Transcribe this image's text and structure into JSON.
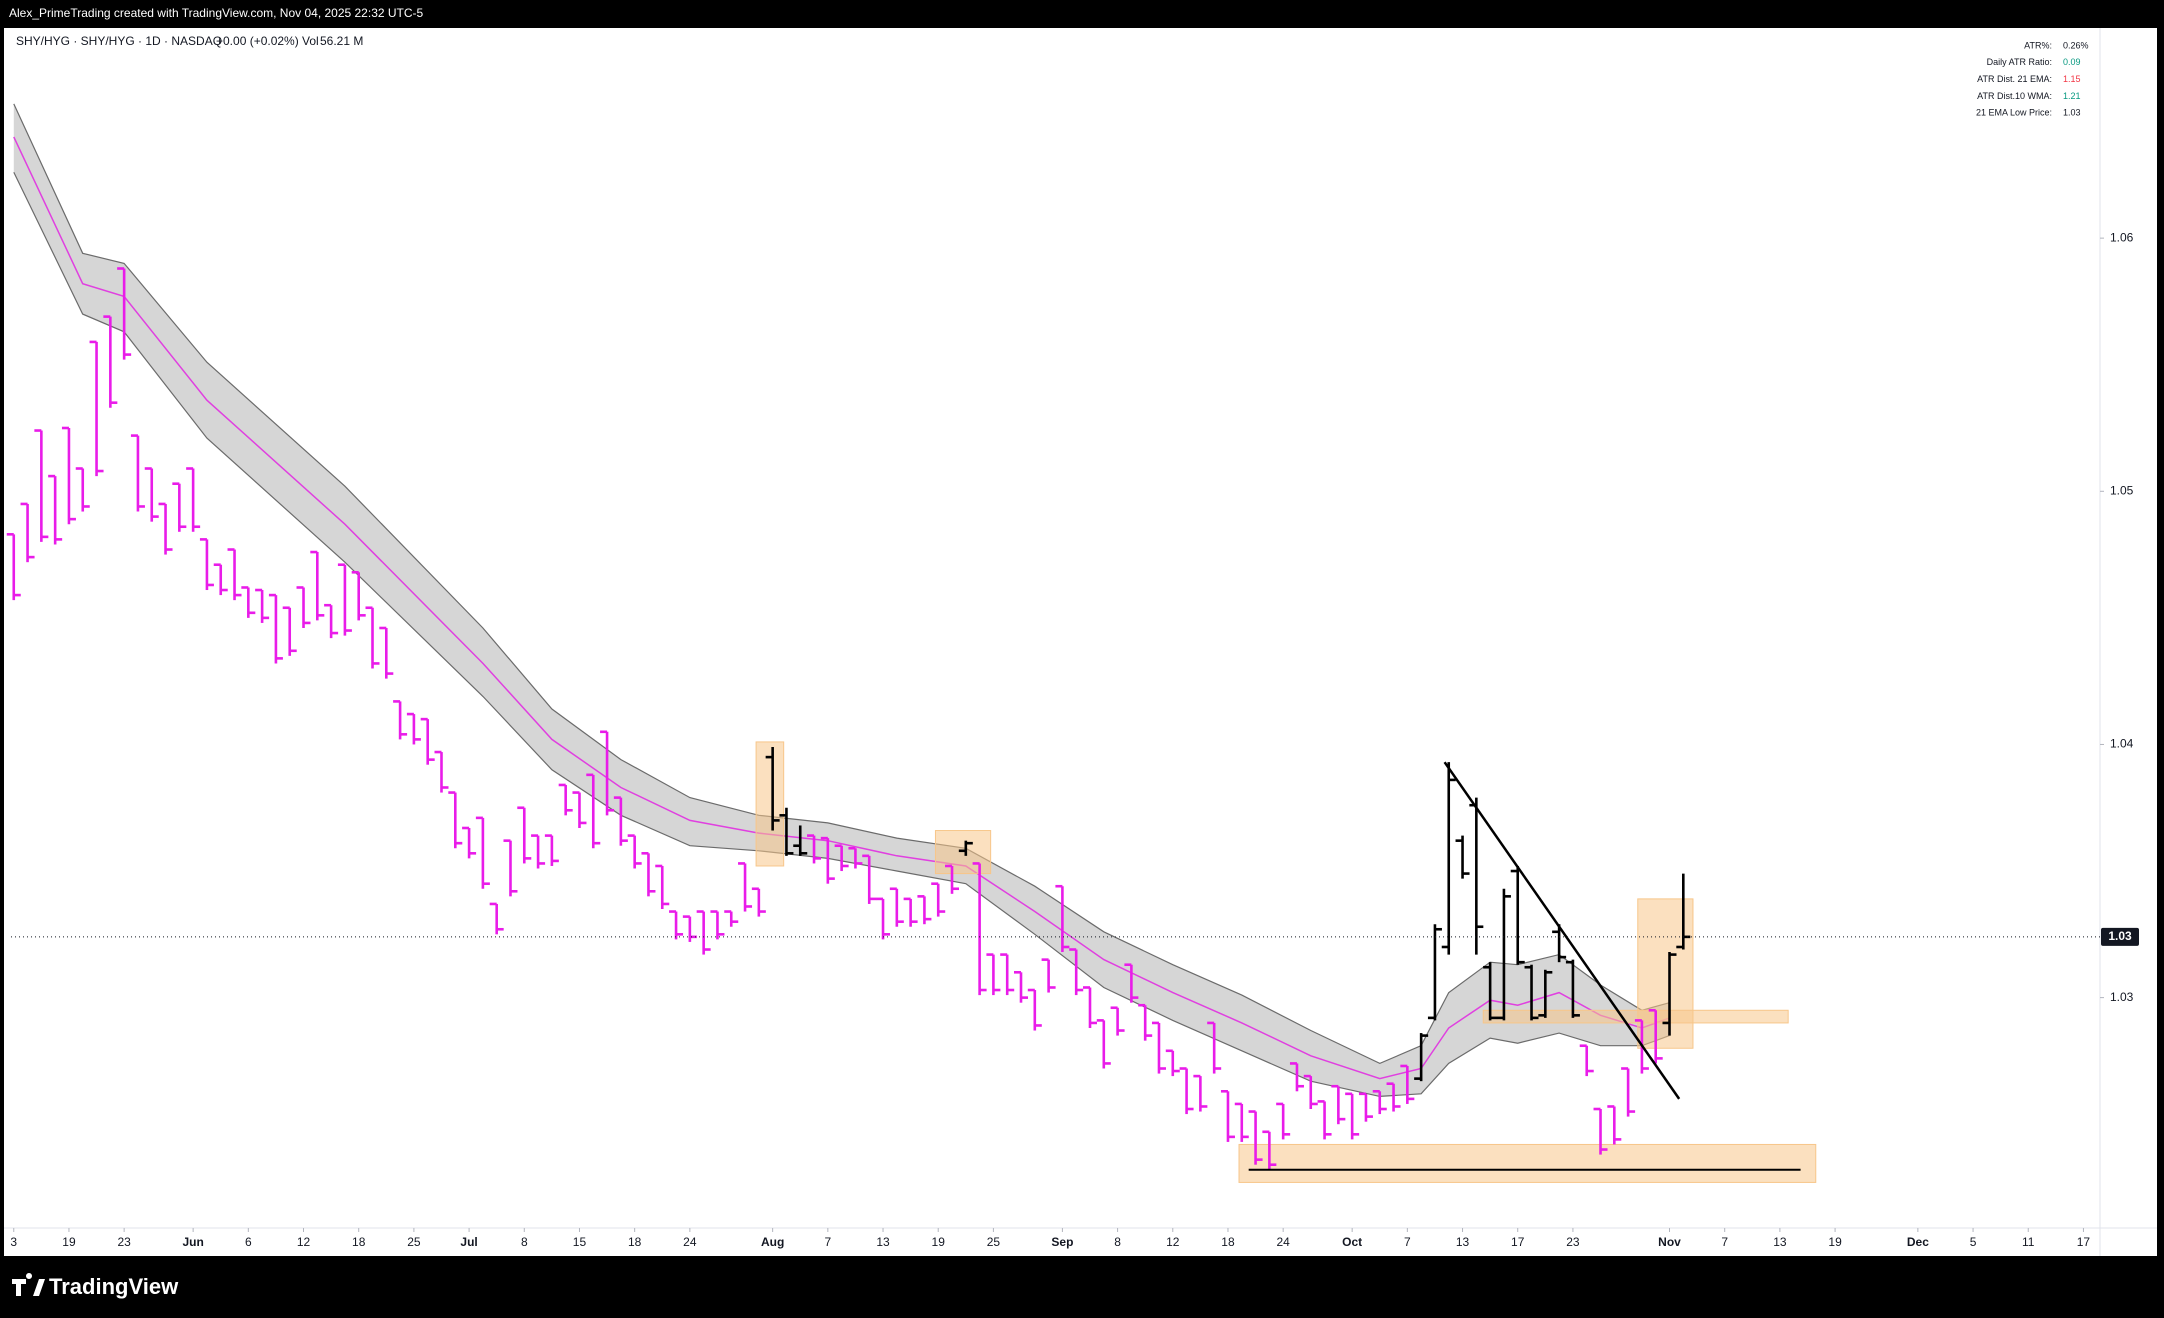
{
  "header": {
    "credit": "Alex_PrimeTrading created with TradingView.com, Nov 04, 2025 22:32 UTC-5"
  },
  "symbol": {
    "name": "SHY/HYG · SHY/HYG · 1D · NASDAQ",
    "change": "+0.00 (+0.02%)",
    "vol_label": "Vol",
    "vol": "56.21 M"
  },
  "stats": [
    {
      "label": "ATR%:",
      "value": "0.26%",
      "color": "#131722"
    },
    {
      "label": "Daily ATR Ratio:",
      "value": "0.09",
      "color": "#089981"
    },
    {
      "label": "ATR Dist. 21 EMA:",
      "value": "1.15",
      "color": "#f23645"
    },
    {
      "label": "ATR Dist.10 WMA:",
      "value": "1.21",
      "color": "#089981"
    },
    {
      "label": "21 EMA Low Price:",
      "value": "1.03",
      "color": "#131722"
    }
  ],
  "footer": {
    "logo": "TradingView"
  },
  "chart_data": {
    "type": "ohlc",
    "price_label": "1.03",
    "xlim": [
      -0.2,
      151.2
    ],
    "ylim": [
      1.0209,
      1.0683
    ],
    "yticks": [
      1.03,
      1.04,
      1.05,
      1.06
    ],
    "grid": false,
    "xticks": [
      {
        "value": 0,
        "label": "3"
      },
      {
        "value": 4,
        "label": "19"
      },
      {
        "value": 8,
        "label": "23"
      },
      {
        "value": 13,
        "label": "Jun"
      },
      {
        "value": 17,
        "label": "6"
      },
      {
        "value": 21,
        "label": "12"
      },
      {
        "value": 25,
        "label": "18"
      },
      {
        "value": 29,
        "label": "25"
      },
      {
        "value": 33,
        "label": "Jul"
      },
      {
        "value": 37,
        "label": "8"
      },
      {
        "value": 41,
        "label": "15"
      },
      {
        "value": 45,
        "label": "18"
      },
      {
        "value": 49,
        "label": "24"
      },
      {
        "value": 55,
        "label": "Aug"
      },
      {
        "value": 59,
        "label": "7"
      },
      {
        "value": 63,
        "label": "13"
      },
      {
        "value": 67,
        "label": "19"
      },
      {
        "value": 71,
        "label": "25"
      },
      {
        "value": 76,
        "label": "Sep"
      },
      {
        "value": 80,
        "label": "8"
      },
      {
        "value": 84,
        "label": "12"
      },
      {
        "value": 88,
        "label": "18"
      },
      {
        "value": 92,
        "label": "24"
      },
      {
        "value": 97,
        "label": "Oct"
      },
      {
        "value": 101,
        "label": "7"
      },
      {
        "value": 105,
        "label": "13"
      },
      {
        "value": 109,
        "label": "17"
      },
      {
        "value": 113,
        "label": "23"
      },
      {
        "value": 120,
        "label": "Nov"
      },
      {
        "value": 124,
        "label": "7"
      },
      {
        "value": 128,
        "label": "13"
      },
      {
        "value": 132,
        "label": "19"
      },
      {
        "value": 138,
        "label": "Dec"
      },
      {
        "value": 142,
        "label": "5"
      },
      {
        "value": 146,
        "label": "11"
      },
      {
        "value": 150,
        "label": "17"
      }
    ],
    "open": [
      1.0483,
      1.0495,
      1.0524,
      1.0506,
      1.0525,
      1.0509,
      1.0559,
      1.0569,
      1.0588,
      1.0522,
      1.0509,
      1.0495,
      1.0503,
      1.0509,
      1.0481,
      1.0471,
      1.0477,
      1.0462,
      1.0461,
      1.0459,
      1.0454,
      1.0462,
      1.0476,
      1.0455,
      1.0471,
      1.0468,
      1.0454,
      1.0446,
      1.0417,
      1.0412,
      1.041,
      1.0397,
      1.0381,
      1.0367,
      1.0371,
      1.0337,
      1.0362,
      1.0375,
      1.0364,
      1.0364,
      1.0384,
      1.0381,
      1.0388,
      1.0405,
      1.0379,
      1.0364,
      1.0357,
      1.0352,
      1.0334,
      1.0332,
      1.0334,
      1.0334,
      1.0334,
      1.0353,
      1.0343,
      1.0395,
      1.0372,
      1.036,
      1.0364,
      1.0363,
      1.036,
      1.0359,
      1.0356,
      1.0339,
      1.0343,
      1.0339,
      1.034,
      1.0345,
      1.0352,
      1.0358,
      1.0353,
      1.0317,
      1.0317,
      1.031,
      1.0303,
      1.0315,
      1.0344,
      1.0319,
      1.0304,
      1.0291,
      1.0296,
      1.0313,
      1.0297,
      1.029,
      1.0279,
      1.0272,
      1.0269,
      1.029,
      1.0263,
      1.0258,
      1.0255,
      1.0247,
      1.0258,
      1.0274,
      1.0269,
      1.0259,
      1.0265,
      1.0262,
      1.0262,
      1.0263,
      1.0266,
      1.0273,
      1.0268,
      1.0292,
      1.032,
      1.0362,
      1.0376,
      1.0312,
      1.0292,
      1.035,
      1.0312,
      1.0293,
      1.0326,
      1.0314,
      1.0281,
      1.0256,
      1.0257,
      1.0272,
      1.0291,
      1.0295,
      1.029,
      1.032
    ],
    "high": [
      1.0483,
      1.0495,
      1.0524,
      1.0506,
      1.0525,
      1.0509,
      1.0559,
      1.0569,
      1.0588,
      1.0522,
      1.0509,
      1.0495,
      1.0503,
      1.0509,
      1.0481,
      1.0471,
      1.0477,
      1.0462,
      1.0461,
      1.0459,
      1.0454,
      1.0462,
      1.0476,
      1.0455,
      1.0471,
      1.0468,
      1.0454,
      1.0446,
      1.0417,
      1.0412,
      1.041,
      1.0397,
      1.0381,
      1.0367,
      1.0371,
      1.0337,
      1.0362,
      1.0375,
      1.0364,
      1.0364,
      1.0384,
      1.0381,
      1.0388,
      1.0405,
      1.0379,
      1.0364,
      1.0357,
      1.0352,
      1.0334,
      1.0332,
      1.0334,
      1.0334,
      1.0334,
      1.0353,
      1.0343,
      1.0399,
      1.0375,
      1.0368,
      1.0364,
      1.0363,
      1.036,
      1.0359,
      1.0356,
      1.0339,
      1.0343,
      1.0339,
      1.034,
      1.0345,
      1.0352,
      1.0362,
      1.0353,
      1.0317,
      1.0317,
      1.031,
      1.0303,
      1.0315,
      1.0344,
      1.0319,
      1.0304,
      1.0291,
      1.0296,
      1.0313,
      1.0297,
      1.029,
      1.0279,
      1.0272,
      1.0269,
      1.029,
      1.0263,
      1.0258,
      1.0255,
      1.0247,
      1.0258,
      1.0274,
      1.0269,
      1.0259,
      1.0265,
      1.0262,
      1.0262,
      1.0263,
      1.0266,
      1.0273,
      1.0286,
      1.0329,
      1.0393,
      1.0364,
      1.0379,
      1.0314,
      1.0343,
      1.0352,
      1.0313,
      1.0311,
      1.0329,
      1.0315,
      1.0281,
      1.0256,
      1.0257,
      1.0272,
      1.0291,
      1.0295,
      1.0318,
      1.0349
    ],
    "low": [
      1.0457,
      1.0472,
      1.048,
      1.0479,
      1.0487,
      1.0492,
      1.0506,
      1.0533,
      1.0552,
      1.0492,
      1.0488,
      1.0475,
      1.0484,
      1.0484,
      1.0461,
      1.0459,
      1.0457,
      1.045,
      1.0448,
      1.0432,
      1.0435,
      1.0446,
      1.0449,
      1.0442,
      1.0443,
      1.0449,
      1.043,
      1.0426,
      1.0402,
      1.04,
      1.0392,
      1.0381,
      1.0359,
      1.0355,
      1.0343,
      1.0325,
      1.034,
      1.0353,
      1.0351,
      1.0352,
      1.0372,
      1.0367,
      1.0359,
      1.0372,
      1.036,
      1.0351,
      1.034,
      1.0335,
      1.0323,
      1.0322,
      1.0317,
      1.0323,
      1.0328,
      1.0334,
      1.0332,
      1.0366,
      1.0356,
      1.0356,
      1.0353,
      1.0345,
      1.035,
      1.0351,
      1.0337,
      1.0323,
      1.0328,
      1.0328,
      1.0329,
      1.0332,
      1.0341,
      1.0356,
      1.0301,
      1.0301,
      1.0301,
      1.0298,
      1.0287,
      1.0302,
      1.0318,
      1.0301,
      1.0288,
      1.0272,
      1.0285,
      1.0298,
      1.0283,
      1.027,
      1.0269,
      1.0254,
      1.0255,
      1.027,
      1.0243,
      1.0243,
      1.0234,
      1.0232,
      1.0244,
      1.0263,
      1.0256,
      1.0244,
      1.025,
      1.0244,
      1.0251,
      1.0254,
      1.0255,
      1.0258,
      1.0267,
      1.0291,
      1.0317,
      1.0347,
      1.0317,
      1.0291,
      1.0291,
      1.0313,
      1.0291,
      1.0292,
      1.0314,
      1.0292,
      1.0269,
      1.0238,
      1.0242,
      1.0253,
      1.027,
      1.0274,
      1.0285,
      1.0319
    ],
    "close": [
      1.0459,
      1.0474,
      1.0482,
      1.0481,
      1.0489,
      1.0494,
      1.0508,
      1.0535,
      1.0554,
      1.0494,
      1.049,
      1.0477,
      1.0486,
      1.0486,
      1.0463,
      1.0461,
      1.0459,
      1.0452,
      1.045,
      1.0434,
      1.0437,
      1.0448,
      1.0451,
      1.0444,
      1.0445,
      1.0451,
      1.0432,
      1.0428,
      1.0404,
      1.0402,
      1.0394,
      1.0383,
      1.0361,
      1.0357,
      1.0345,
      1.0327,
      1.0342,
      1.0355,
      1.0353,
      1.0354,
      1.0374,
      1.0369,
      1.0361,
      1.0374,
      1.0362,
      1.0353,
      1.0342,
      1.0337,
      1.0325,
      1.0324,
      1.0319,
      1.0325,
      1.033,
      1.0336,
      1.0334,
      1.037,
      1.0357,
      1.0357,
      1.0355,
      1.0347,
      1.0352,
      1.0353,
      1.0339,
      1.0325,
      1.033,
      1.033,
      1.0331,
      1.0334,
      1.0343,
      1.0361,
      1.0303,
      1.0303,
      1.0303,
      1.03,
      1.0289,
      1.0304,
      1.032,
      1.0303,
      1.029,
      1.0274,
      1.0287,
      1.03,
      1.0285,
      1.0272,
      1.0271,
      1.0256,
      1.0257,
      1.0272,
      1.0245,
      1.0245,
      1.0236,
      1.0234,
      1.0246,
      1.0265,
      1.0258,
      1.0246,
      1.0252,
      1.0246,
      1.0253,
      1.0256,
      1.0257,
      1.026,
      1.0285,
      1.0327,
      1.0386,
      1.0349,
      1.0328,
      1.0292,
      1.034,
      1.0314,
      1.0292,
      1.031,
      1.0316,
      1.0293,
      1.0271,
      1.024,
      1.0244,
      1.0255,
      1.0272,
      1.0276,
      1.0317,
      1.0324
    ],
    "colors": [
      "#e91ce9",
      "#e91ce9",
      "#e91ce9",
      "#e91ce9",
      "#e91ce9",
      "#e91ce9",
      "#e91ce9",
      "#e91ce9",
      "#e91ce9",
      "#e91ce9",
      "#e91ce9",
      "#e91ce9",
      "#e91ce9",
      "#e91ce9",
      "#e91ce9",
      "#e91ce9",
      "#e91ce9",
      "#e91ce9",
      "#e91ce9",
      "#e91ce9",
      "#e91ce9",
      "#e91ce9",
      "#e91ce9",
      "#e91ce9",
      "#e91ce9",
      "#e91ce9",
      "#e91ce9",
      "#e91ce9",
      "#e91ce9",
      "#e91ce9",
      "#e91ce9",
      "#e91ce9",
      "#e91ce9",
      "#e91ce9",
      "#e91ce9",
      "#e91ce9",
      "#e91ce9",
      "#e91ce9",
      "#e91ce9",
      "#e91ce9",
      "#e91ce9",
      "#e91ce9",
      "#e91ce9",
      "#e91ce9",
      "#e91ce9",
      "#e91ce9",
      "#e91ce9",
      "#e91ce9",
      "#e91ce9",
      "#e91ce9",
      "#e91ce9",
      "#e91ce9",
      "#e91ce9",
      "#e91ce9",
      "#e91ce9",
      "#000000",
      "#000000",
      "#000000",
      "#e91ce9",
      "#e91ce9",
      "#e91ce9",
      "#e91ce9",
      "#e91ce9",
      "#e91ce9",
      "#e91ce9",
      "#e91ce9",
      "#e91ce9",
      "#e91ce9",
      "#e91ce9",
      "#000000",
      "#e91ce9",
      "#e91ce9",
      "#e91ce9",
      "#e91ce9",
      "#e91ce9",
      "#e91ce9",
      "#e91ce9",
      "#e91ce9",
      "#e91ce9",
      "#e91ce9",
      "#e91ce9",
      "#e91ce9",
      "#e91ce9",
      "#e91ce9",
      "#e91ce9",
      "#e91ce9",
      "#e91ce9",
      "#e91ce9",
      "#e91ce9",
      "#e91ce9",
      "#e91ce9",
      "#e91ce9",
      "#e91ce9",
      "#e91ce9",
      "#e91ce9",
      "#e91ce9",
      "#e91ce9",
      "#e91ce9",
      "#e91ce9",
      "#e91ce9",
      "#e91ce9",
      "#e91ce9",
      "#000000",
      "#000000",
      "#000000",
      "#000000",
      "#000000",
      "#000000",
      "#000000",
      "#000000",
      "#000000",
      "#000000",
      "#000000",
      "#000000",
      "#e91ce9",
      "#e91ce9",
      "#e91ce9",
      "#e91ce9",
      "#e91ce9",
      "#e91ce9",
      "#000000",
      "#000000"
    ],
    "band": {
      "x": [
        0,
        5,
        8,
        14,
        24,
        34,
        39,
        44,
        49,
        54,
        59,
        64,
        69,
        74,
        79,
        84,
        89,
        94,
        99,
        102,
        104,
        107,
        109,
        112,
        115,
        118,
        120
      ],
      "mid": [
        1.064,
        1.0582,
        1.0577,
        1.0536,
        1.0487,
        1.0432,
        1.0402,
        1.0383,
        1.037,
        1.0365,
        1.0362,
        1.0356,
        1.0352,
        1.0334,
        1.0315,
        1.0302,
        1.029,
        1.0277,
        1.0268,
        1.0272,
        1.0288,
        1.0299,
        1.0297,
        1.0302,
        1.0293,
        1.0288,
        1.0292
      ],
      "upper": [
        1.0653,
        1.0594,
        1.059,
        1.0551,
        1.0502,
        1.0446,
        1.0414,
        1.0394,
        1.0379,
        1.0372,
        1.0369,
        1.0363,
        1.0359,
        1.0344,
        1.0326,
        1.0313,
        1.0301,
        1.0287,
        1.0274,
        1.0281,
        1.0302,
        1.0314,
        1.0313,
        1.0317,
        1.0305,
        1.0295,
        1.0298
      ],
      "lower": [
        1.0626,
        1.057,
        1.0563,
        1.0521,
        1.0472,
        1.0419,
        1.039,
        1.0372,
        1.036,
        1.0358,
        1.0355,
        1.035,
        1.0345,
        1.0325,
        1.0304,
        1.0291,
        1.0279,
        1.0267,
        1.0261,
        1.0262,
        1.0274,
        1.0284,
        1.0282,
        1.0286,
        1.0281,
        1.0281,
        1.0285
      ],
      "fill": "#d6d6d6",
      "line_color": "#6b6b6b",
      "mid_color": "#e040e0"
    },
    "zones": [
      {
        "x": [
          53.8,
          55.8
        ],
        "y": [
          1.0352,
          1.0401
        ]
      },
      {
        "x": [
          66.8,
          70.8
        ],
        "y": [
          1.0349,
          1.0366
        ]
      },
      {
        "x": [
          117.7,
          121.7
        ],
        "y": [
          1.028,
          1.0339
        ]
      },
      {
        "x": [
          106.5,
          128.6
        ],
        "y": [
          1.029,
          1.0295
        ]
      },
      {
        "x": [
          88.8,
          130.6
        ],
        "y": [
          1.0227,
          1.0242
        ]
      }
    ],
    "zone_color": "#f7c68a",
    "trendline": {
      "x": [
        103.7,
        120.7
      ],
      "y": [
        1.0393,
        1.026
      ]
    },
    "hline": {
      "x": [
        89.5,
        129.5
      ],
      "y": 1.0232
    }
  }
}
